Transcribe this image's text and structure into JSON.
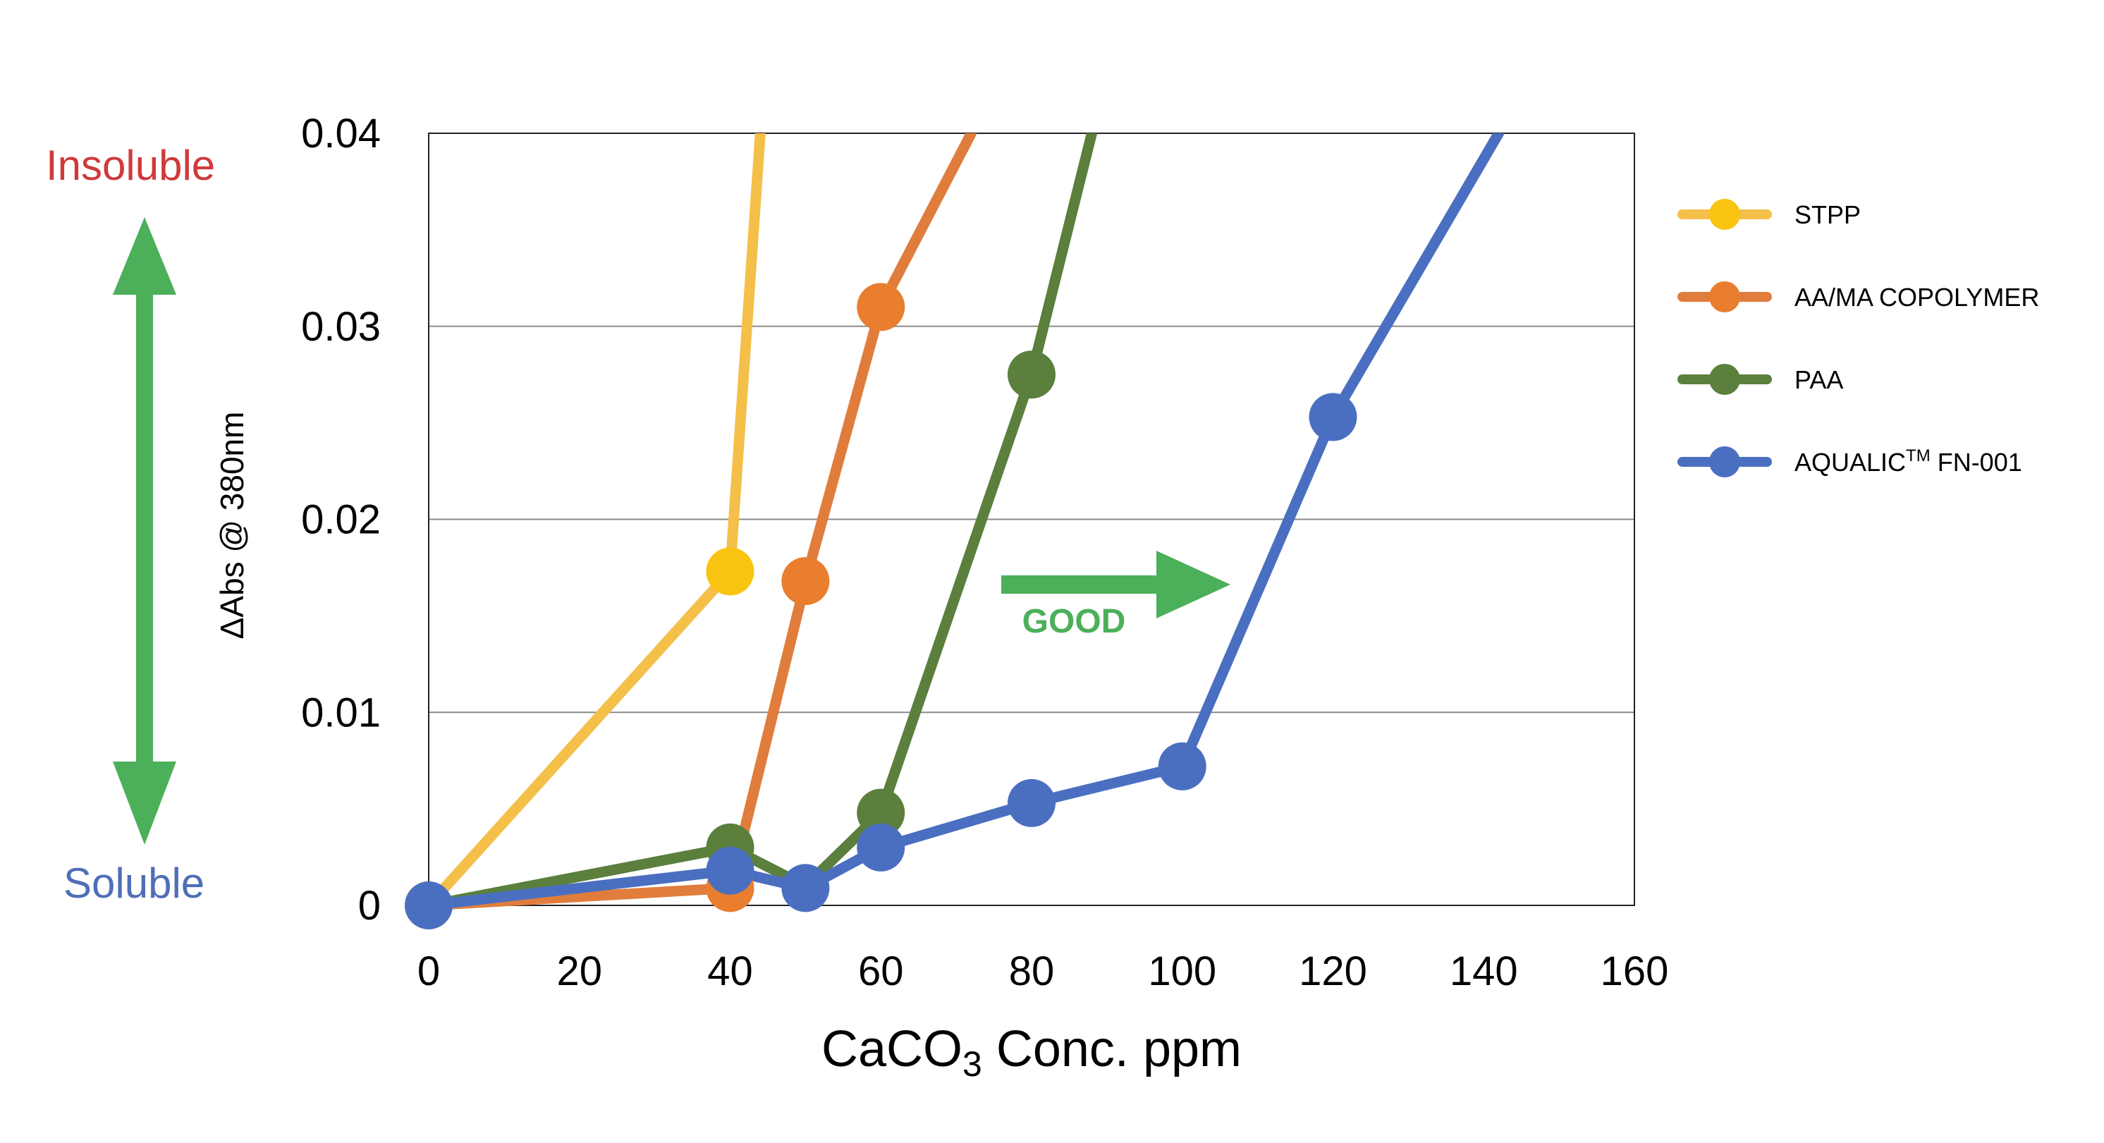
{
  "annotations": {
    "insoluble": "Insoluble",
    "soluble": "Soluble",
    "good": "GOOD",
    "insoluble_color": "#d0393b",
    "soluble_color": "#4f6eb8",
    "good_color": "#4caf5a",
    "arrow_color": "#4caf5a"
  },
  "chart_data": {
    "type": "line",
    "title": "",
    "xlabel_main": "CaCO",
    "xlabel_sub": "3",
    "xlabel_rest": " Conc. ppm",
    "ylabel": "ΔAbs @ 380nm",
    "xlim": [
      0,
      160
    ],
    "ylim": [
      0,
      0.04
    ],
    "x_ticks": [
      0,
      20,
      40,
      60,
      80,
      100,
      120,
      140,
      160
    ],
    "x_tick_labels": [
      "0",
      "20",
      "40",
      "60",
      "80",
      "100",
      "120",
      "140",
      "160"
    ],
    "y_ticks": [
      0,
      0.01,
      0.02,
      0.03,
      0.04
    ],
    "y_tick_labels": [
      "0",
      "0.01",
      "0.02",
      "0.03",
      "0.04"
    ],
    "grid": "horizontal",
    "legend_position": "right",
    "series": [
      {
        "name": "STPP",
        "color": "#f4c04a",
        "marker_color": "#f9c411",
        "points": [
          [
            0,
            0
          ],
          [
            40,
            0.0173
          ],
          [
            44,
            0.04
          ]
        ],
        "markers": [
          [
            0,
            0
          ],
          [
            40,
            0.0173
          ]
        ]
      },
      {
        "name": "AA/MA COPOLYMER",
        "color": "#e07d3c",
        "marker_color": "#e87e2e",
        "points": [
          [
            0,
            0
          ],
          [
            40,
            0.0009
          ],
          [
            50,
            0.0168
          ],
          [
            60,
            0.031
          ],
          [
            72,
            0.04
          ]
        ],
        "markers": [
          [
            40,
            0.0009
          ],
          [
            50,
            0.0168
          ],
          [
            60,
            0.031
          ]
        ]
      },
      {
        "name": "PAA",
        "color": "#5b7f3d",
        "marker_color": "#5b7f3d",
        "points": [
          [
            0,
            0
          ],
          [
            40,
            0.003
          ],
          [
            50,
            0.001
          ],
          [
            60,
            0.0048
          ],
          [
            80,
            0.0275
          ],
          [
            88,
            0.04
          ]
        ],
        "markers": [
          [
            40,
            0.003
          ],
          [
            60,
            0.0048
          ],
          [
            80,
            0.0275
          ]
        ]
      },
      {
        "name": "AQUALIC™ FN-001",
        "legend_base": "AQUALIC",
        "legend_sup": "TM",
        "legend_tail": " FN-001",
        "color": "#4a6fc1",
        "marker_color": "#4a6fc1",
        "points": [
          [
            0,
            0
          ],
          [
            40,
            0.0018
          ],
          [
            50,
            0.0009
          ],
          [
            60,
            0.003
          ],
          [
            80,
            0.0053
          ],
          [
            100,
            0.0072
          ],
          [
            120,
            0.0253
          ],
          [
            142,
            0.04
          ]
        ],
        "markers": [
          [
            0,
            0
          ],
          [
            40,
            0.0018
          ],
          [
            50,
            0.0009
          ],
          [
            60,
            0.003
          ],
          [
            80,
            0.0053
          ],
          [
            100,
            0.0072
          ],
          [
            120,
            0.0253
          ]
        ]
      }
    ]
  }
}
